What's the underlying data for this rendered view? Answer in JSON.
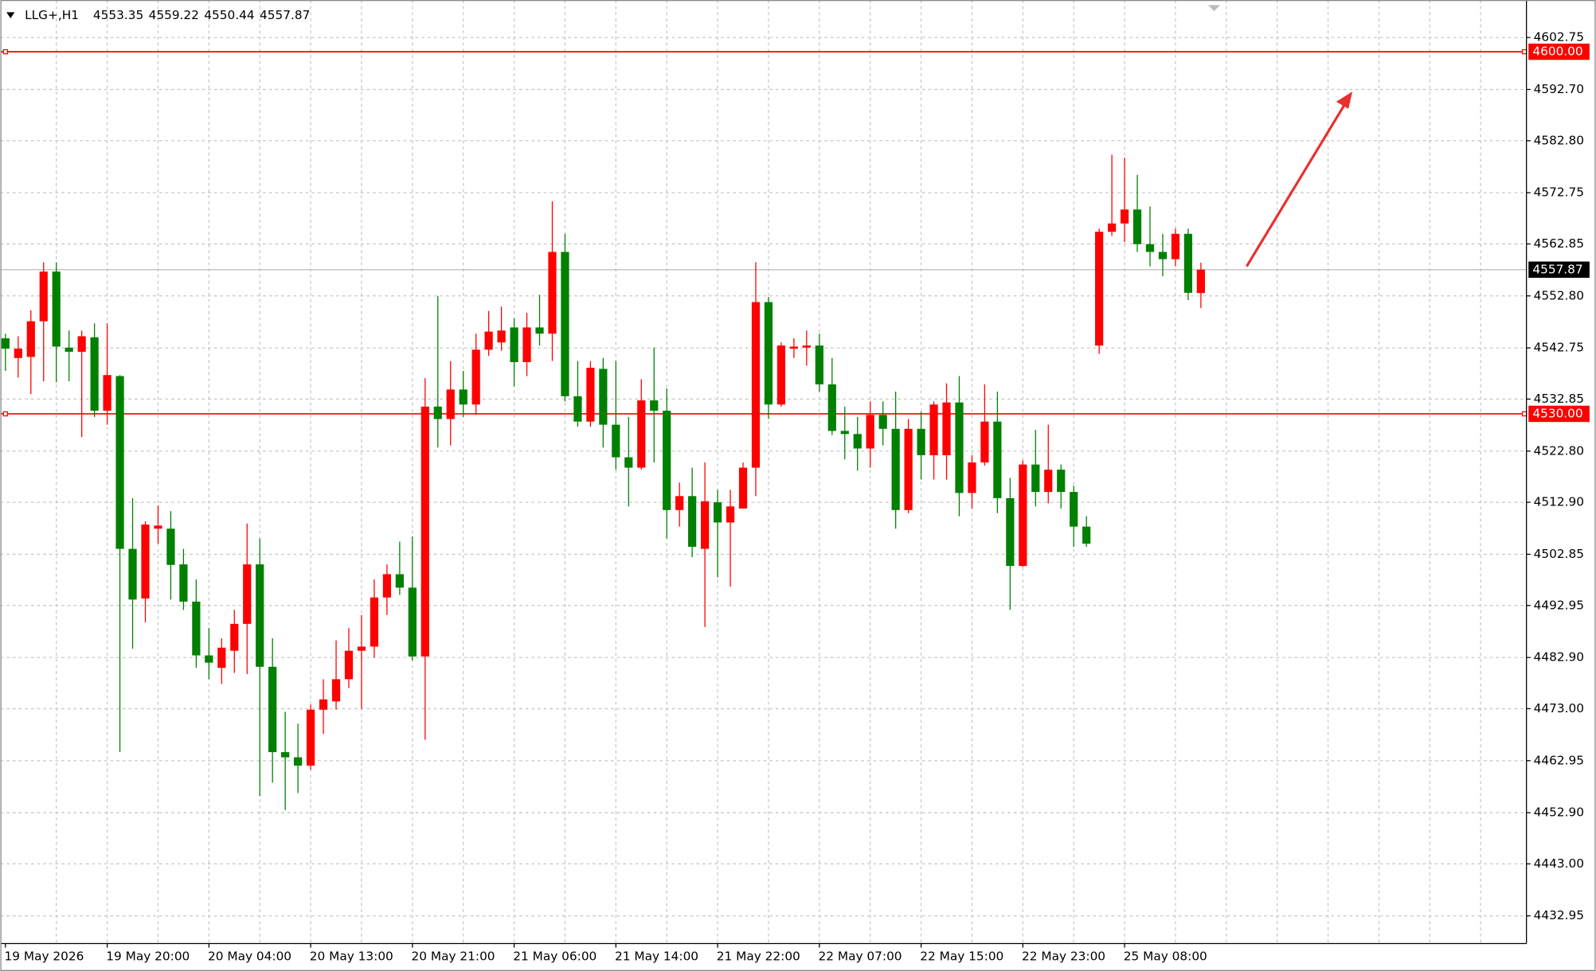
{
  "chart_data": {
    "type": "candlestick",
    "title": "LLG+,H1",
    "categories": [
      "19 May 2026",
      null,
      null,
      null,
      null,
      null,
      null,
      null,
      "19 May 20:00",
      null,
      null,
      null,
      null,
      null,
      null,
      null,
      "20 May 04:00",
      null,
      null,
      null,
      null,
      null,
      null,
      null,
      "20 May 13:00",
      null,
      null,
      null,
      null,
      null,
      null,
      null,
      "20 May 21:00",
      null,
      null,
      null,
      null,
      null,
      null,
      null,
      "21 May 06:00",
      null,
      null,
      null,
      null,
      null,
      null,
      null,
      "21 May 14:00",
      null,
      null,
      null,
      null,
      null,
      null,
      null,
      "21 May 22:00",
      null,
      null,
      null,
      null,
      null,
      null,
      null,
      "22 May 07:00",
      null,
      null,
      null,
      null,
      null,
      null,
      null,
      "22 May 15:00",
      null,
      null,
      null,
      null,
      null,
      null,
      null,
      "22 May 23:00",
      null,
      null,
      null,
      null,
      null,
      null,
      null,
      "25 May 08:00",
      null,
      null,
      null,
      null,
      null,
      null
    ],
    "open": [
      4544.6,
      4540.8,
      4541.0,
      4547.9,
      4557.5,
      4542.8,
      4542.0,
      4544.8,
      4530.6,
      4537.3,
      4503.9,
      4494.3,
      4507.8,
      4507.8,
      4500.9,
      4493.7,
      4483.3,
      4480.9,
      4484.2,
      4489.4,
      4500.9,
      4481.1,
      4464.6,
      4463.6,
      4462.0,
      4472.8,
      4474.4,
      4478.7,
      4484.2,
      4485.0,
      4494.5,
      4499.0,
      4496.4,
      4483.1,
      4531.4,
      4529.0,
      4534.7,
      4531.8,
      4542.4,
      4543.8,
      4546.7,
      4540.0,
      4546.7,
      4545.5,
      4561.3,
      4533.4,
      4528.5,
      4538.7,
      4527.9,
      4521.6,
      4519.6,
      4532.6,
      4530.6,
      4511.4,
      4514.1,
      4503.9,
      4512.9,
      4509.0,
      4511.7,
      4519.6,
      4551.6,
      4531.8,
      4542.6,
      4542.8,
      4543.2,
      4535.7,
      4526.7,
      4526.1,
      4523.3,
      4529.8,
      4527.1,
      4511.4,
      4527.1,
      4522.0,
      4522.0,
      4532.2,
      4514.7,
      4520.6,
      4528.5,
      4513.7,
      4500.6,
      4520.2,
      4514.9,
      4519.2,
      4514.9,
      4508.2,
      4543.2,
      4565.2,
      4566.8,
      4569.5,
      4562.8,
      4561.3,
      4559.9,
      4564.8,
      4553.35
    ],
    "high": [
      4545.5,
      4545.0,
      4550.0,
      4559.3,
      4559.3,
      4546.1,
      4546.1,
      4547.5,
      4547.5,
      4537.5,
      4513.7,
      4509.2,
      4512.3,
      4511.2,
      4503.9,
      4498.0,
      4488.6,
      4486.6,
      4492.1,
      4508.8,
      4505.9,
      4486.6,
      4472.4,
      4470.1,
      4473.8,
      4478.7,
      4486.2,
      4488.6,
      4491.1,
      4498.0,
      4500.9,
      4505.3,
      4506.3,
      4536.9,
      4552.8,
      4540.2,
      4538.3,
      4545.5,
      4549.9,
      4550.7,
      4548.5,
      4549.5,
      4553.0,
      4571.1,
      4564.8,
      4540.2,
      4540.2,
      4540.8,
      4540.2,
      4529.4,
      4536.7,
      4542.8,
      4534.9,
      4516.7,
      4519.6,
      4520.6,
      4515.3,
      4515.3,
      4520.6,
      4559.3,
      4552.6,
      4543.8,
      4544.6,
      4546.1,
      4545.5,
      4540.8,
      4531.4,
      4529.4,
      4532.4,
      4532.4,
      4534.3,
      4529.0,
      4530.4,
      4532.4,
      4535.9,
      4537.3,
      4522.0,
      4535.7,
      4534.3,
      4517.6,
      4521.0,
      4526.9,
      4527.9,
      4520.2,
      4516.1,
      4510.2,
      4565.8,
      4580.1,
      4579.5,
      4576.2,
      4570.1,
      4564.8,
      4565.8,
      4565.8,
      4559.22
    ],
    "low": [
      4538.3,
      4537.0,
      4533.8,
      4536.3,
      4536.1,
      4536.3,
      4525.5,
      4529.4,
      4527.9,
      4464.6,
      4484.6,
      4489.7,
      4504.9,
      4494.1,
      4492.1,
      4480.9,
      4478.7,
      4477.8,
      4479.9,
      4479.7,
      4456.1,
      4458.7,
      4453.4,
      4456.7,
      4461.2,
      4468.1,
      4472.8,
      4477.0,
      4473.0,
      4482.9,
      4491.1,
      4495.0,
      4482.3,
      4467.0,
      4523.5,
      4523.9,
      4529.4,
      4529.8,
      4541.2,
      4542.2,
      4535.3,
      4537.3,
      4543.2,
      4540.2,
      4532.4,
      4527.5,
      4527.5,
      4523.5,
      4519.2,
      4512.1,
      4519.2,
      4520.6,
      4505.9,
      4508.2,
      4502.3,
      4488.8,
      4498.4,
      4496.6,
      4511.7,
      4514.1,
      4529.0,
      4531.4,
      4540.8,
      4539.3,
      4534.3,
      4525.9,
      4521.2,
      4519.0,
      4519.6,
      4523.9,
      4507.8,
      4510.8,
      4517.3,
      4517.3,
      4517.3,
      4510.2,
      4511.7,
      4520.0,
      4510.8,
      4492.1,
      4500.4,
      4512.1,
      4512.7,
      4511.7,
      4504.3,
      4504.3,
      4541.6,
      4564.4,
      4563.2,
      4561.3,
      4558.5,
      4556.6,
      4558.5,
      4552.0,
      4550.44
    ],
    "close": [
      4542.6,
      4542.6,
      4547.9,
      4557.5,
      4543.0,
      4542.0,
      4545.0,
      4530.6,
      4537.5,
      4503.9,
      4494.1,
      4508.6,
      4508.4,
      4500.8,
      4493.7,
      4483.3,
      4481.9,
      4484.8,
      4489.4,
      4500.9,
      4481.1,
      4464.6,
      4463.6,
      4462.0,
      4472.8,
      4474.8,
      4478.7,
      4484.2,
      4485.0,
      4494.5,
      4499.0,
      4496.4,
      4483.1,
      4531.4,
      4529.0,
      4534.7,
      4531.8,
      4542.4,
      4545.9,
      4546.1,
      4540.0,
      4546.7,
      4545.5,
      4561.3,
      4533.4,
      4528.5,
      4538.9,
      4527.9,
      4521.6,
      4519.6,
      4532.6,
      4530.6,
      4511.4,
      4514.1,
      4504.3,
      4513.1,
      4509.0,
      4512.1,
      4519.6,
      4551.6,
      4531.8,
      4543.2,
      4543.0,
      4543.2,
      4535.7,
      4526.7,
      4526.1,
      4523.3,
      4529.8,
      4527.1,
      4511.4,
      4527.1,
      4522.0,
      4531.8,
      4532.2,
      4514.7,
      4520.6,
      4528.5,
      4513.7,
      4500.6,
      4520.2,
      4514.9,
      4519.2,
      4514.9,
      4508.2,
      4504.9,
      4565.2,
      4566.8,
      4569.5,
      4562.8,
      4561.3,
      4559.9,
      4564.8,
      4553.4,
      4557.87
    ],
    "up_color": "#ff0000",
    "down_color": "#008000",
    "ylim": [
      4427.6,
      4610.0
    ],
    "yticks": [
      4602.75,
      {
        "value": 4592.7,
        "label": "4592.70"
      },
      {
        "value": 4582.8,
        "label": "4582.80"
      },
      4572.75,
      4562.85,
      {
        "value": 4552.8,
        "label": "4552.80"
      },
      4542.75,
      4532.85,
      {
        "value": 4522.8,
        "label": "4522.80"
      },
      {
        "value": 4512.9,
        "label": "4512.90"
      },
      4502.85,
      4492.95,
      {
        "value": 4482.9,
        "label": "4482.90"
      },
      {
        "value": 4473.0,
        "label": "4473.00"
      },
      4462.95,
      {
        "value": 4452.9,
        "label": "4452.90"
      },
      {
        "value": 4443.0,
        "label": "4443.00"
      },
      4432.95
    ],
    "levels": [
      {
        "value": 4600,
        "label": "4600.00"
      },
      {
        "value": 4530,
        "label": "4530.00"
      }
    ],
    "level_color": "#ff0000",
    "grid": true
  }
}
